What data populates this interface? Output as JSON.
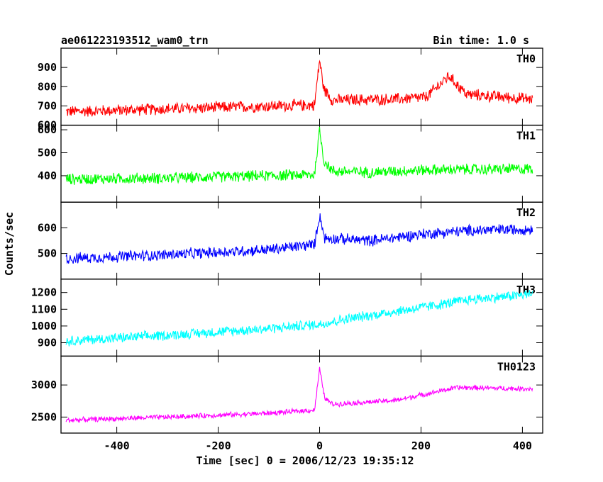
{
  "chart_data": {
    "type": "line",
    "title_left": "ae061223193512_wam0_trn",
    "title_right": "Bin time: 1.0 s",
    "xlabel": "Time [sec] 0 = 2006/12/23 19:35:12",
    "ylabel": "Counts/sec",
    "xlim": [
      -510,
      440
    ],
    "x_ticks": [
      -400,
      -200,
      0,
      200,
      400
    ],
    "x_range": [
      -500,
      420
    ],
    "panels": [
      {
        "name": "TH0",
        "color": "#ff0000",
        "ylim": [
          600,
          1000
        ],
        "y_ticks": [
          600,
          700,
          800,
          900
        ],
        "trend": [
          [
            -500,
            670
          ],
          [
            -300,
            685
          ],
          [
            -10,
            705
          ],
          [
            0,
            940
          ],
          [
            8,
            790
          ],
          [
            25,
            730
          ],
          [
            150,
            735
          ],
          [
            210,
            745
          ],
          [
            255,
            855
          ],
          [
            290,
            760
          ],
          [
            420,
            735
          ]
        ],
        "noise": 35
      },
      {
        "name": "TH1",
        "color": "#00ff00",
        "ylim": [
          285,
          620
        ],
        "y_ticks": [
          400,
          500,
          600
        ],
        "trend": [
          [
            -500,
            385
          ],
          [
            -300,
            390
          ],
          [
            -10,
            405
          ],
          [
            0,
            600
          ],
          [
            8,
            470
          ],
          [
            25,
            420
          ],
          [
            100,
            415
          ],
          [
            200,
            425
          ],
          [
            420,
            430
          ]
        ],
        "noise": 28
      },
      {
        "name": "TH2",
        "color": "#0000ff",
        "ylim": [
          400,
          700
        ],
        "y_ticks": [
          500,
          600
        ],
        "trend": [
          [
            -500,
            480
          ],
          [
            -300,
            495
          ],
          [
            -100,
            515
          ],
          [
            -10,
            535
          ],
          [
            0,
            650
          ],
          [
            10,
            560
          ],
          [
            100,
            550
          ],
          [
            200,
            575
          ],
          [
            300,
            590
          ],
          [
            420,
            595
          ]
        ],
        "noise": 25
      },
      {
        "name": "TH3",
        "color": "#00ffff",
        "ylim": [
          820,
          1280
        ],
        "y_ticks": [
          900,
          1000,
          1100,
          1200
        ],
        "trend": [
          [
            -500,
            910
          ],
          [
            -300,
            945
          ],
          [
            -100,
            985
          ],
          [
            0,
            1010
          ],
          [
            50,
            1040
          ],
          [
            200,
            1110
          ],
          [
            300,
            1160
          ],
          [
            420,
            1190
          ]
        ],
        "noise": 35
      },
      {
        "name": "TH0123",
        "color": "#ff00ff",
        "ylim": [
          2250,
          3450
        ],
        "y_ticks": [
          2500,
          3000
        ],
        "trend": [
          [
            -500,
            2450
          ],
          [
            -300,
            2500
          ],
          [
            -100,
            2560
          ],
          [
            -10,
            2610
          ],
          [
            0,
            3250
          ],
          [
            10,
            2800
          ],
          [
            25,
            2700
          ],
          [
            150,
            2760
          ],
          [
            270,
            2960
          ],
          [
            420,
            2940
          ]
        ],
        "noise": 45
      }
    ]
  }
}
